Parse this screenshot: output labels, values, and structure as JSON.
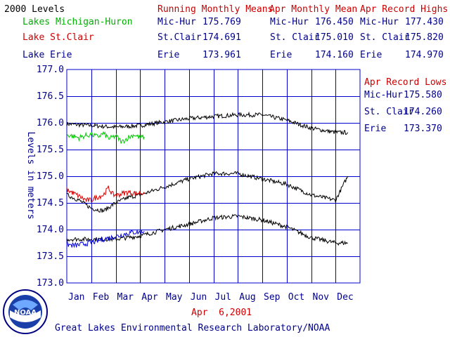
{
  "header": {
    "levels_title": "2000 Levels",
    "legend_lakes": [
      {
        "label": "Lakes Michigan-Huron",
        "color": "#00b000"
      },
      {
        "label": "Lake St.Clair",
        "color": "#cc0000"
      },
      {
        "label": "Lake Erie",
        "color": "#00008b"
      }
    ],
    "running_means": {
      "title": "Running Monthly Means",
      "rows": [
        {
          "lake": "Mic-Hur",
          "value": "175.769"
        },
        {
          "lake": "St.Clair",
          "value": "174.691"
        },
        {
          "lake": "Erie",
          "value": "173.961"
        }
      ]
    },
    "apr_mean": {
      "title": "Apr Monthly Mean",
      "rows": [
        {
          "lake": "Mic-Hur",
          "value": "176.450"
        },
        {
          "lake": "St. Clair",
          "value": "175.010"
        },
        {
          "lake": "Erie",
          "value": "174.160"
        }
      ]
    },
    "apr_highs": {
      "title": "Apr Record Highs",
      "rows": [
        {
          "lake": "Mic-Hur",
          "value": "177.430"
        },
        {
          "lake": "St. Clair",
          "value": "175.820"
        },
        {
          "lake": "Erie",
          "value": "174.970"
        }
      ]
    }
  },
  "record_lows": {
    "title": "Apr Record Lows",
    "rows": [
      {
        "lake": "Mic-Hur",
        "value": "175.580"
      },
      {
        "lake": "St. Clair",
        "value": "174.260"
      },
      {
        "lake": "Erie",
        "value": "173.370"
      }
    ]
  },
  "footer": {
    "date": "Apr  6,2001",
    "lab": "Great Lakes Environmental Research Laboratory/NOAA",
    "logo_text": "NOAA"
  },
  "colors": {
    "grid": "#0000cc",
    "label_blue": "#00008b",
    "red": "#cc0000",
    "green": "#00b000",
    "series_black": "#000000",
    "series_blue": "#0000dd",
    "series_red": "#dd0000",
    "series_green": "#00cc00"
  },
  "chart_data": {
    "type": "line",
    "ylabel": "Levels in meters",
    "ylim": [
      173.0,
      177.0
    ],
    "y_ticks": [
      "173.0",
      "173.5",
      "174.0",
      "174.5",
      "175.0",
      "175.5",
      "176.0",
      "176.5",
      "177.0"
    ],
    "x_ticks": [
      "Jan",
      "Feb",
      "Mar",
      "Apr",
      "May",
      "Jun",
      "Jul",
      "Aug",
      "Sep",
      "Oct",
      "Nov",
      "Dec"
    ],
    "grid": true,
    "series": [
      {
        "name": "Lakes Michigan-Huron",
        "color": "#00cc00",
        "x": [
          0.0,
          0.25,
          0.5,
          0.75,
          1.0,
          1.25,
          1.5,
          1.75,
          2.0,
          2.25,
          2.5,
          2.75,
          3.0,
          3.17
        ],
        "y": [
          175.78,
          175.75,
          175.72,
          175.76,
          175.78,
          175.74,
          175.8,
          175.7,
          175.76,
          175.64,
          175.72,
          175.78,
          175.72,
          175.74
        ]
      },
      {
        "name": "Lake St.Clair",
        "color": "#dd0000",
        "x": [
          0.0,
          0.2,
          0.4,
          0.6,
          0.8,
          1.0,
          1.2,
          1.5,
          1.7,
          1.9,
          2.1,
          2.3,
          2.5,
          2.8,
          3.0,
          3.17
        ],
        "y": [
          174.75,
          174.7,
          174.65,
          174.6,
          174.55,
          174.55,
          174.6,
          174.65,
          174.78,
          174.65,
          174.65,
          174.68,
          174.7,
          174.68,
          174.68,
          174.7
        ]
      },
      {
        "name": "Lake Erie",
        "color": "#0000dd",
        "x": [
          0.0,
          0.3,
          0.6,
          0.9,
          1.2,
          1.5,
          1.8,
          2.1,
          2.4,
          2.7,
          3.0,
          3.17
        ],
        "y": [
          173.72,
          173.7,
          173.72,
          173.75,
          173.78,
          173.82,
          173.85,
          173.88,
          173.92,
          173.95,
          173.95,
          173.97
        ]
      },
      {
        "name": "",
        "color": "#000000",
        "group": "mean",
        "x": [
          0,
          1,
          2,
          3,
          4,
          5,
          6,
          7,
          8,
          9,
          10,
          11,
          11.5
        ],
        "y": [
          175.98,
          175.95,
          175.92,
          175.95,
          176.02,
          176.08,
          176.12,
          176.15,
          176.15,
          176.05,
          175.9,
          175.82,
          175.82
        ]
      },
      {
        "name": "",
        "color": "#000000",
        "group": "mean",
        "x": [
          0,
          0.5,
          1,
          1.5,
          2,
          2.5,
          3,
          4,
          5,
          6,
          7,
          8,
          9,
          10,
          11,
          11.5
        ],
        "y": [
          174.65,
          174.55,
          174.4,
          174.35,
          174.5,
          174.6,
          174.65,
          174.8,
          174.95,
          175.05,
          175.05,
          174.95,
          174.85,
          174.65,
          174.55,
          175.0
        ]
      },
      {
        "name": "",
        "color": "#000000",
        "group": "mean",
        "x": [
          0,
          1,
          2,
          3,
          4,
          5,
          6,
          7,
          8,
          9,
          10,
          11,
          11.5
        ],
        "y": [
          173.82,
          173.82,
          173.82,
          173.88,
          174.0,
          174.1,
          174.22,
          174.25,
          174.18,
          174.05,
          173.85,
          173.75,
          173.75
        ]
      }
    ]
  }
}
